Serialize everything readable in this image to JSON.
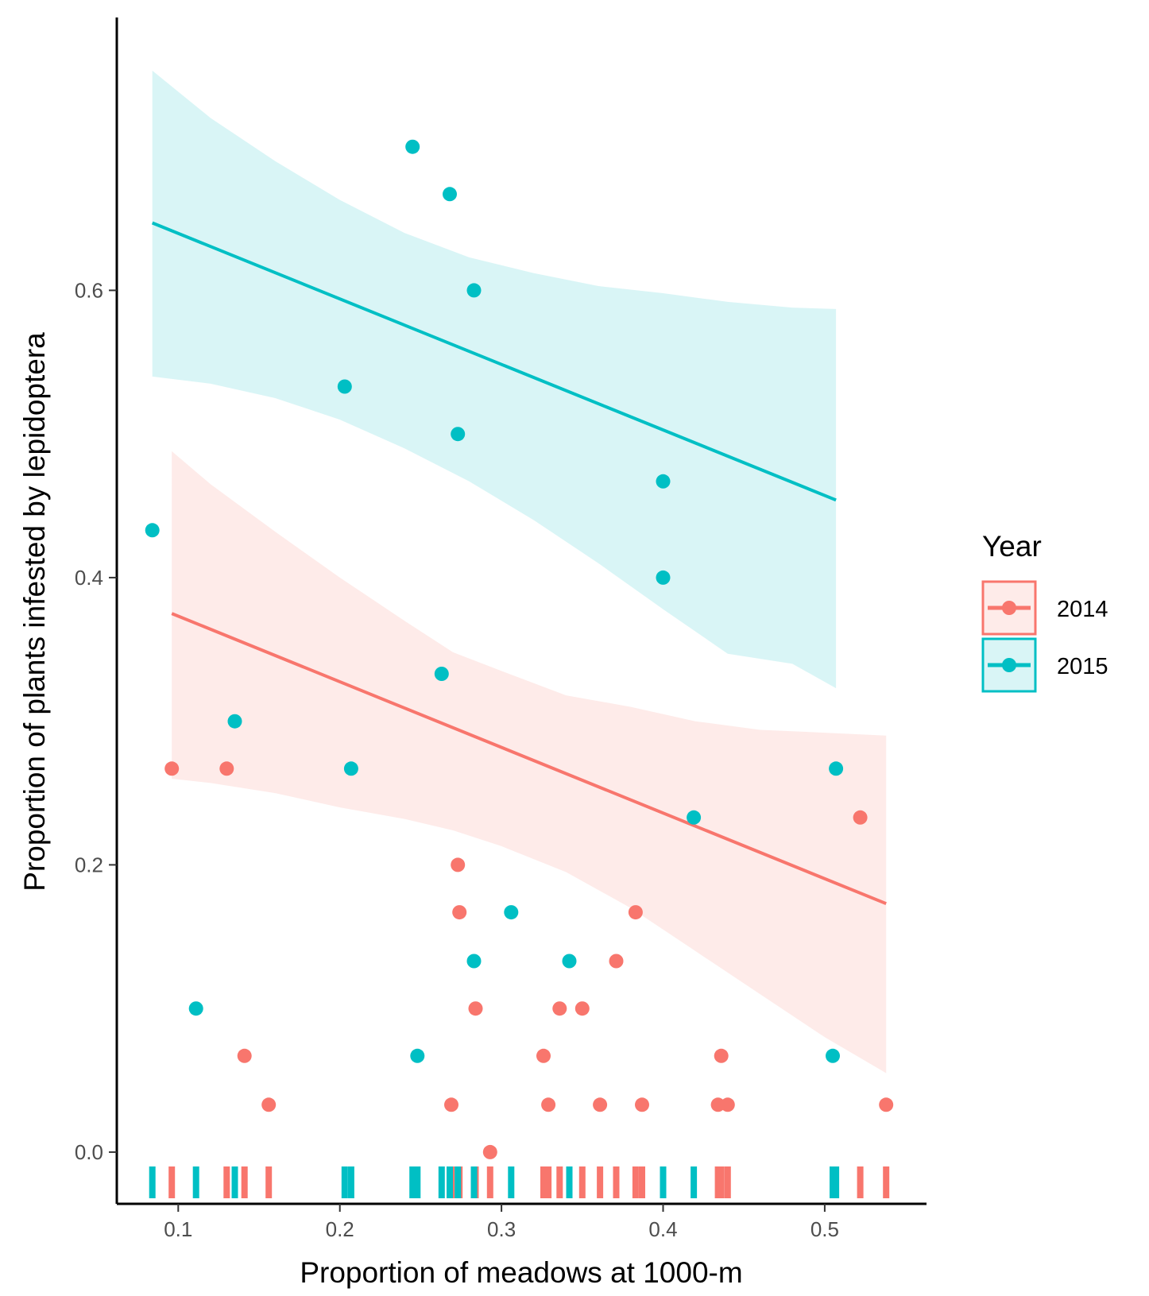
{
  "chart_data": {
    "type": "scatter",
    "xlabel": "Proportion of meadows at 1000-m",
    "ylabel": "Proportion of plants infested by lepidoptera",
    "xlim": [
      0.062,
      0.563
    ],
    "ylim": [
      -0.036,
      0.79
    ],
    "x_ticks": [
      0.1,
      0.2,
      0.3,
      0.4,
      0.5
    ],
    "x_tick_labels": [
      "0.1",
      "0.2",
      "0.3",
      "0.4",
      "0.5"
    ],
    "y_ticks": [
      0.0,
      0.2,
      0.4,
      0.6
    ],
    "y_tick_labels": [
      "0.0",
      "0.2",
      "0.4",
      "0.6"
    ],
    "grid": false,
    "legend": {
      "title": "Year",
      "position": "right"
    },
    "rug": "x-axis bottom",
    "series": [
      {
        "name": "2014",
        "color": "#F8766D",
        "points": [
          [
            0.096,
            0.267
          ],
          [
            0.13,
            0.267
          ],
          [
            0.141,
            0.067
          ],
          [
            0.156,
            0.033
          ],
          [
            0.269,
            0.033
          ],
          [
            0.273,
            0.2
          ],
          [
            0.274,
            0.167
          ],
          [
            0.284,
            0.1
          ],
          [
            0.293,
            0.0
          ],
          [
            0.326,
            0.067
          ],
          [
            0.329,
            0.033
          ],
          [
            0.336,
            0.1
          ],
          [
            0.35,
            0.1
          ],
          [
            0.361,
            0.033
          ],
          [
            0.371,
            0.133
          ],
          [
            0.383,
            0.167
          ],
          [
            0.387,
            0.033
          ],
          [
            0.434,
            0.033
          ],
          [
            0.436,
            0.067
          ],
          [
            0.44,
            0.033
          ],
          [
            0.522,
            0.233
          ],
          [
            0.538,
            0.033
          ]
        ],
        "fit": {
          "x": [
            0.096,
            0.538
          ],
          "y": [
            0.375,
            0.173
          ]
        },
        "band_x": [
          0.096,
          0.12,
          0.16,
          0.2,
          0.24,
          0.27,
          0.3,
          0.34,
          0.38,
          0.42,
          0.46,
          0.5,
          0.538
        ],
        "band_upper": [
          0.488,
          0.465,
          0.432,
          0.4,
          0.37,
          0.348,
          0.335,
          0.318,
          0.31,
          0.3,
          0.294,
          0.292,
          0.29
        ],
        "band_lower": [
          0.26,
          0.257,
          0.25,
          0.24,
          0.232,
          0.224,
          0.213,
          0.195,
          0.17,
          0.14,
          0.11,
          0.08,
          0.055
        ]
      },
      {
        "name": "2015",
        "color": "#00BFC4",
        "points": [
          [
            0.084,
            0.433
          ],
          [
            0.111,
            0.1
          ],
          [
            0.135,
            0.3
          ],
          [
            0.203,
            0.533
          ],
          [
            0.207,
            0.267
          ],
          [
            0.245,
            0.7
          ],
          [
            0.248,
            0.067
          ],
          [
            0.263,
            0.333
          ],
          [
            0.268,
            0.667
          ],
          [
            0.273,
            0.5
          ],
          [
            0.283,
            0.6
          ],
          [
            0.283,
            0.133
          ],
          [
            0.306,
            0.167
          ],
          [
            0.342,
            0.133
          ],
          [
            0.4,
            0.467
          ],
          [
            0.4,
            0.4
          ],
          [
            0.419,
            0.233
          ],
          [
            0.505,
            0.067
          ],
          [
            0.507,
            0.267
          ]
        ],
        "fit": {
          "x": [
            0.084,
            0.507
          ],
          "y": [
            0.647,
            0.454
          ]
        },
        "band_x": [
          0.084,
          0.12,
          0.16,
          0.2,
          0.24,
          0.28,
          0.32,
          0.36,
          0.4,
          0.44,
          0.48,
          0.507
        ],
        "band_upper": [
          0.753,
          0.72,
          0.69,
          0.663,
          0.64,
          0.623,
          0.612,
          0.603,
          0.598,
          0.592,
          0.588,
          0.587
        ],
        "band_lower": [
          0.54,
          0.535,
          0.525,
          0.51,
          0.49,
          0.467,
          0.44,
          0.41,
          0.378,
          0.347,
          0.34,
          0.323
        ]
      }
    ]
  }
}
